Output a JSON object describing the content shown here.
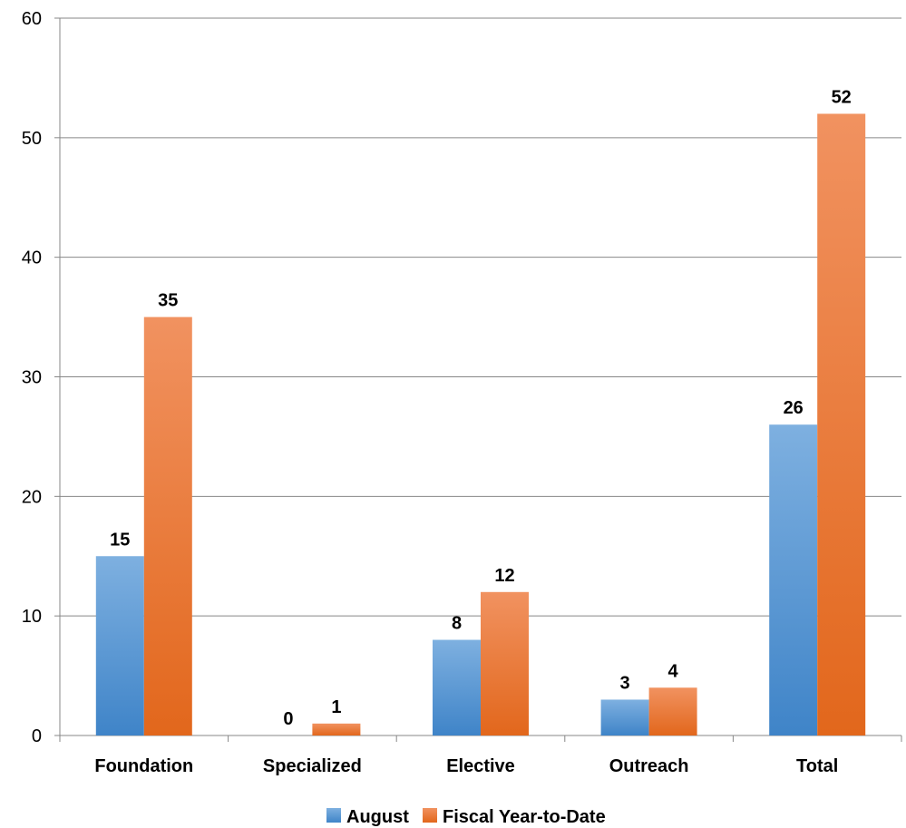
{
  "chart_data": {
    "type": "bar",
    "categories": [
      "Foundation",
      "Specialized",
      "Elective",
      "Outreach",
      "Total"
    ],
    "series": [
      {
        "name": "August",
        "values": [
          15,
          0,
          8,
          3,
          26
        ],
        "color": "#5B9BD5"
      },
      {
        "name": "Fiscal Year-to-Date",
        "values": [
          35,
          1,
          12,
          4,
          52
        ],
        "color": "#ED7D31"
      }
    ],
    "ylim": [
      0,
      60
    ],
    "yticks": [
      0,
      10,
      20,
      30,
      40,
      50,
      60
    ],
    "grid": true,
    "legend": "bottom",
    "data_labels": true
  }
}
